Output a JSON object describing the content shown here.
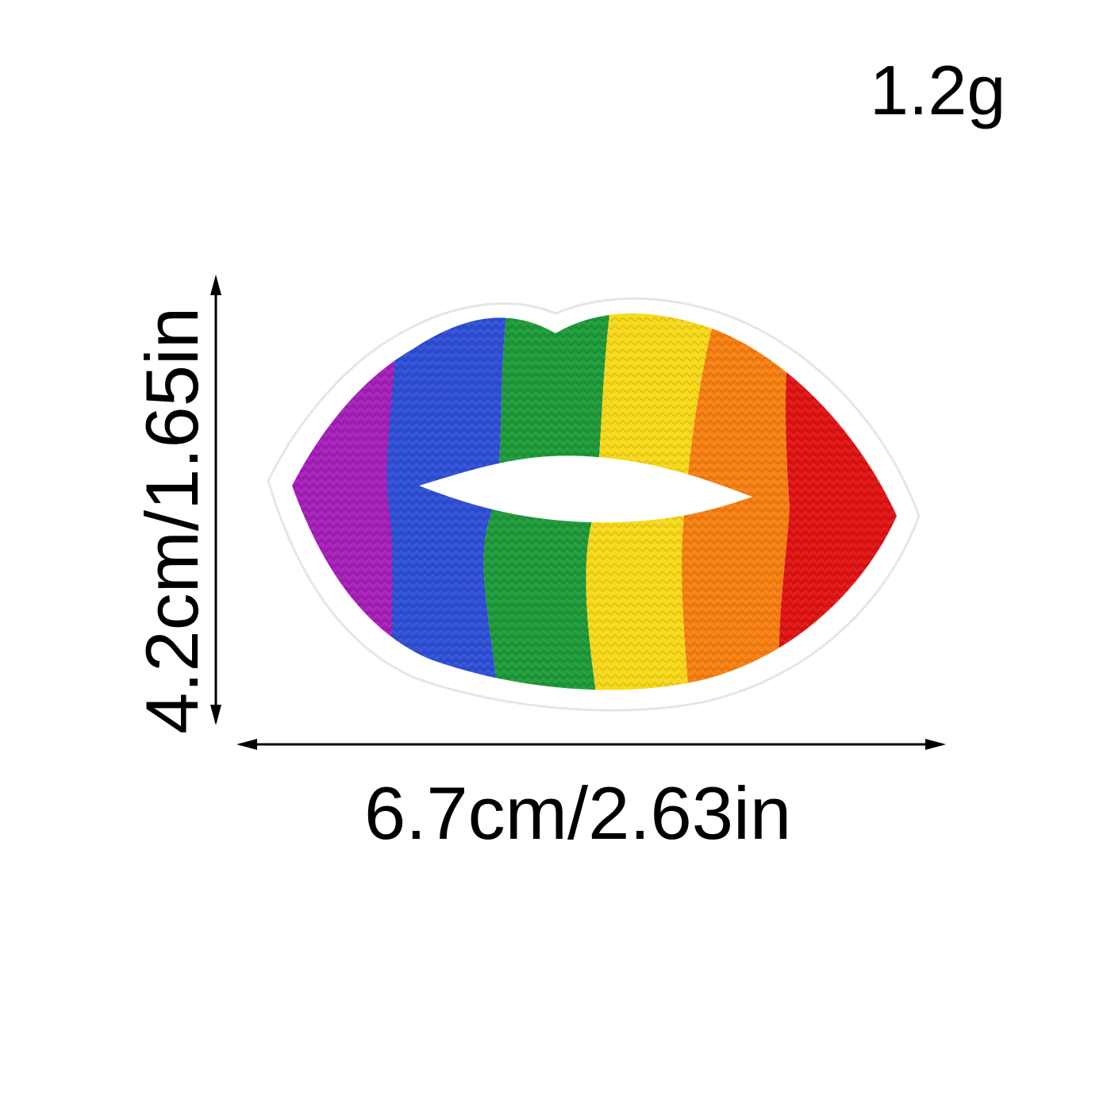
{
  "product": {
    "weight": "1.2g",
    "width_label": "6.7cm/2.63in",
    "height_label": "4.2cm/1.65in",
    "stripe_colors": [
      "#a51fb8",
      "#2f4fd6",
      "#1f9a3a",
      "#f7d81a",
      "#f77f12",
      "#e01313"
    ],
    "border_color": "#ffffff",
    "icon": "rainbow-lips-patch"
  }
}
